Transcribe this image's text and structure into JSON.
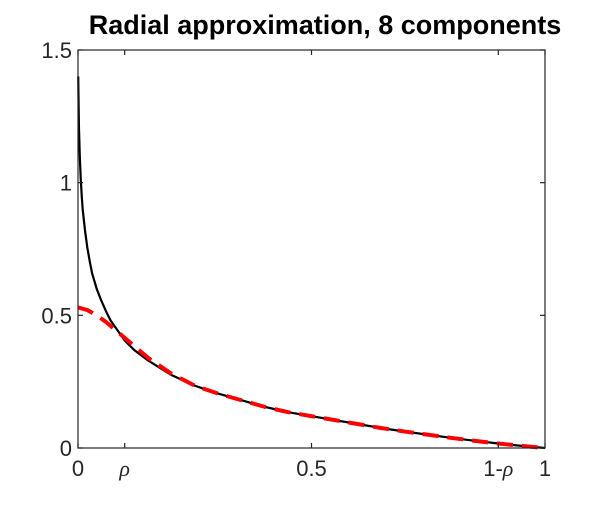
{
  "chart_data": {
    "type": "line",
    "title": "Radial approximation, 8 components",
    "xlabel": "",
    "ylabel": "",
    "xlim": [
      0,
      1
    ],
    "ylim": [
      0,
      1.5
    ],
    "grid": false,
    "x_ticks": [
      {
        "value": 0,
        "label": "0",
        "style": "normal"
      },
      {
        "value": 0.1,
        "label": "ρ",
        "style": "italic"
      },
      {
        "value": 0.5,
        "label": "0.5",
        "style": "normal"
      },
      {
        "value": 0.9,
        "label": "1-ρ",
        "style": "mixed",
        "prefix": "1-",
        "symbol": "ρ"
      },
      {
        "value": 1,
        "label": "1",
        "style": "normal"
      }
    ],
    "y_ticks": [
      {
        "value": 0,
        "label": "0"
      },
      {
        "value": 0.5,
        "label": "0.5"
      },
      {
        "value": 1,
        "label": "1"
      },
      {
        "value": 1.5,
        "label": "1.5"
      }
    ],
    "series": [
      {
        "color": "#000000",
        "style": "solid",
        "x": [
          0.0005,
          0.001,
          0.002,
          0.004,
          0.006,
          0.008,
          0.01,
          0.015,
          0.02,
          0.025,
          0.03,
          0.04,
          0.05,
          0.06,
          0.07,
          0.08,
          0.1,
          0.12,
          0.15,
          0.2,
          0.25,
          0.3,
          0.35,
          0.4,
          0.45,
          0.5,
          0.55,
          0.6,
          0.65,
          0.7,
          0.75,
          0.8,
          0.85,
          0.9,
          0.95,
          1.0
        ],
        "values": [
          1.4,
          1.33,
          1.21,
          1.09,
          1.01,
          0.95,
          0.9,
          0.82,
          0.755,
          0.705,
          0.66,
          0.6,
          0.555,
          0.515,
          0.48,
          0.455,
          0.405,
          0.37,
          0.33,
          0.275,
          0.235,
          0.205,
          0.18,
          0.155,
          0.135,
          0.12,
          0.105,
          0.09,
          0.075,
          0.062,
          0.05,
          0.038,
          0.027,
          0.017,
          0.008,
          0.0
        ]
      },
      {
        "color": "#ff0000",
        "style": "dashed",
        "x": [
          0.0,
          0.02,
          0.04,
          0.06,
          0.08,
          0.1,
          0.12,
          0.15,
          0.2,
          0.25,
          0.3,
          0.35,
          0.4,
          0.45,
          0.5,
          0.55,
          0.6,
          0.65,
          0.7,
          0.75,
          0.8,
          0.85,
          0.9,
          0.95,
          1.0
        ],
        "values": [
          0.53,
          0.52,
          0.5,
          0.475,
          0.445,
          0.415,
          0.385,
          0.34,
          0.28,
          0.235,
          0.205,
          0.18,
          0.155,
          0.135,
          0.12,
          0.105,
          0.09,
          0.075,
          0.062,
          0.05,
          0.038,
          0.027,
          0.017,
          0.008,
          0.0
        ]
      }
    ]
  }
}
